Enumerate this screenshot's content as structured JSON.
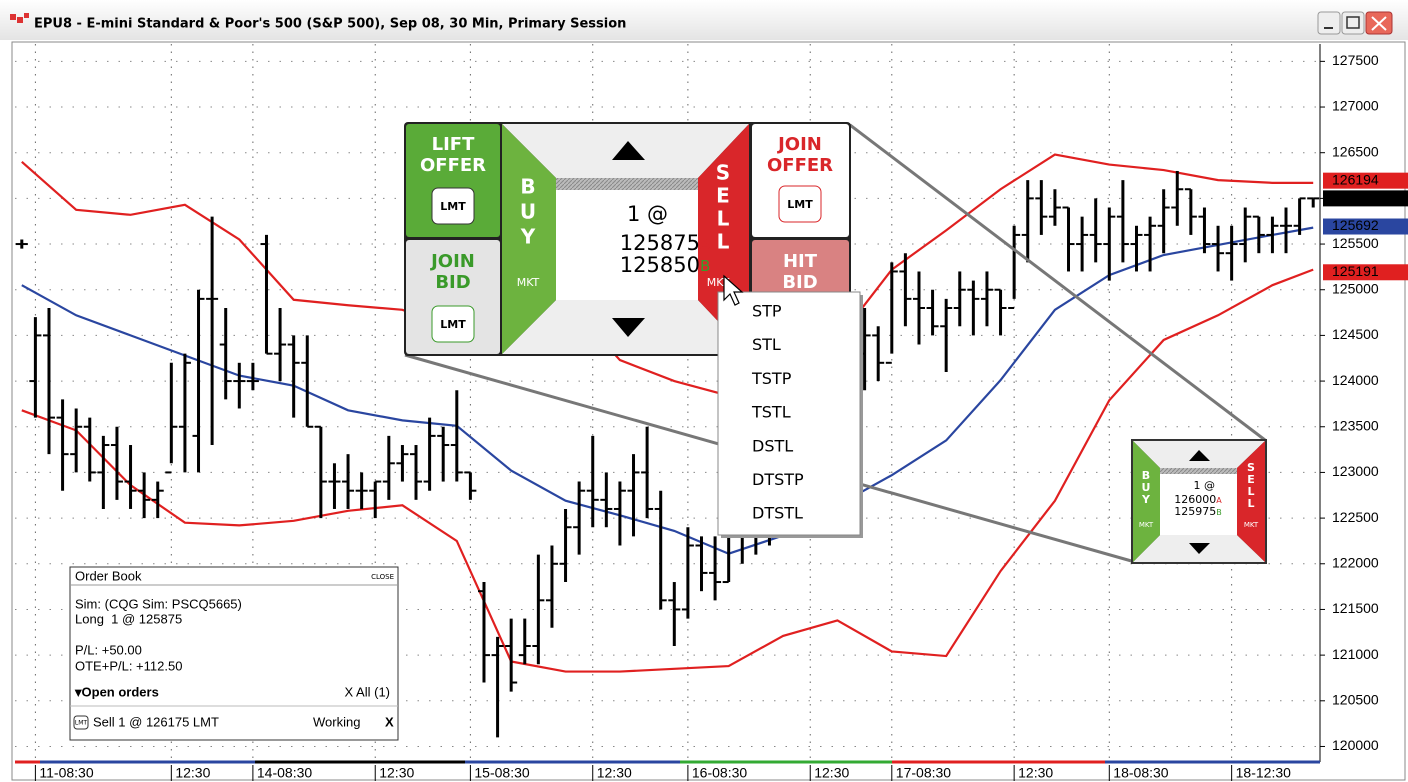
{
  "window": {
    "title": "EPU8 - E-mini Standard & Poor's 500 (S&P 500), Sep 08, 30 Min, Primary Session"
  },
  "chart_data": {
    "type": "ohlc",
    "xlim": [
      -0.5,
      95.5
    ],
    "ylim": [
      119830,
      127690
    ],
    "yticks": [
      120000,
      120500,
      121000,
      121500,
      122000,
      122500,
      123000,
      123500,
      124000,
      124500,
      125000,
      125500,
      126000,
      126500,
      127000,
      127500
    ],
    "xticks": [
      {
        "value": 1,
        "label": "11-08:30"
      },
      {
        "value": 11,
        "label": "12:30"
      },
      {
        "value": 17,
        "label": "14-08:30"
      },
      {
        "value": 26,
        "label": "12:30"
      },
      {
        "value": 33,
        "label": "15-08:30"
      },
      {
        "value": 42,
        "label": "12:30"
      },
      {
        "value": 49,
        "label": "16-08:30"
      },
      {
        "value": 58,
        "label": "12:30"
      },
      {
        "value": 64,
        "label": "17-08:30"
      },
      {
        "value": 73,
        "label": "12:30"
      },
      {
        "value": 80,
        "label": "18-08:30"
      },
      {
        "value": 89,
        "label": "18-12:30"
      }
    ],
    "grid": true,
    "color": "#000000",
    "bars": [
      [
        125500,
        125550,
        125450,
        125500
      ],
      [
        124000,
        124700,
        123600,
        124500
      ],
      [
        124500,
        124800,
        123200,
        123600
      ],
      [
        123600,
        123800,
        122800,
        123200
      ],
      [
        123200,
        123700,
        123000,
        123500
      ],
      [
        123500,
        123600,
        122900,
        123000
      ],
      [
        123000,
        123400,
        122600,
        123300
      ],
      [
        123300,
        123500,
        122700,
        122900
      ],
      [
        122900,
        123300,
        122600,
        122800
      ],
      [
        122800,
        123000,
        122500,
        122700
      ],
      [
        122700,
        122900,
        122500,
        122800
      ],
      [
        123000,
        124200,
        123100,
        123500
      ],
      [
        123500,
        124300,
        123000,
        124200
      ],
      [
        123400,
        125000,
        123000,
        124900
      ],
      [
        124900,
        125800,
        123300,
        124900
      ],
      [
        124400,
        124800,
        123800,
        124000
      ],
      [
        124000,
        124200,
        123700,
        124000
      ],
      [
        124000,
        124200,
        123900,
        124000
      ],
      [
        125500,
        125600,
        124300,
        124300
      ],
      [
        124300,
        124800,
        124000,
        124400
      ],
      [
        124400,
        124500,
        123600,
        124200
      ],
      [
        124200,
        124500,
        123500,
        123500
      ],
      [
        123500,
        123500,
        122500,
        122900
      ],
      [
        122900,
        123100,
        122600,
        122900
      ],
      [
        122900,
        123200,
        122600,
        122800
      ],
      [
        122800,
        123000,
        122600,
        122800
      ],
      [
        122800,
        122900,
        122500,
        122900
      ],
      [
        122900,
        123400,
        122700,
        123100
      ],
      [
        123100,
        123300,
        122900,
        123200
      ],
      [
        123200,
        123300,
        122700,
        122900
      ],
      [
        122900,
        123600,
        122800,
        123400
      ],
      [
        123400,
        123500,
        122900,
        123300
      ],
      [
        123300,
        123900,
        122900,
        123000
      ],
      [
        123000,
        123000,
        122700,
        122800
      ],
      [
        121700,
        121800,
        120700,
        121000
      ],
      [
        121000,
        121200,
        120100,
        121100
      ],
      [
        121100,
        121400,
        120600,
        120700
      ],
      [
        121000,
        121400,
        120900,
        121100
      ],
      [
        121100,
        122100,
        120900,
        121600
      ],
      [
        121600,
        122200,
        121300,
        122000
      ],
      [
        122000,
        122600,
        121800,
        122400
      ],
      [
        122400,
        122900,
        122100,
        122800
      ],
      [
        122800,
        123400,
        122400,
        122700
      ],
      [
        122700,
        123000,
        122400,
        122600
      ],
      [
        122600,
        122900,
        122200,
        122800
      ],
      [
        122800,
        123200,
        122300,
        123000
      ],
      [
        123000,
        123500,
        122500,
        122600
      ],
      [
        122600,
        122800,
        121500,
        121600
      ],
      [
        121600,
        121800,
        121100,
        121500
      ],
      [
        121500,
        122400,
        121400,
        122200
      ],
      [
        122200,
        122300,
        121700,
        121900
      ],
      [
        121900,
        122300,
        121600,
        121800
      ],
      [
        121800,
        122700,
        121800,
        122300
      ],
      [
        122300,
        122500,
        122000,
        122300
      ],
      [
        122300,
        122600,
        122100,
        122400
      ],
      [
        122400,
        122800,
        122200,
        122600
      ],
      [
        122600,
        123000,
        122400,
        122800
      ],
      [
        122800,
        123300,
        122600,
        123100
      ],
      [
        123100,
        123600,
        122900,
        123400
      ],
      [
        123400,
        123900,
        123200,
        123700
      ],
      [
        123700,
        124300,
        123500,
        124000
      ],
      [
        124000,
        124500,
        123700,
        124300
      ],
      [
        124300,
        124800,
        123900,
        124500
      ],
      [
        124500,
        124600,
        124000,
        124200
      ],
      [
        124200,
        125300,
        124300,
        125200
      ],
      [
        125200,
        125400,
        124600,
        124900
      ],
      [
        124900,
        125200,
        124400,
        124800
      ],
      [
        124800,
        125000,
        124500,
        124600
      ],
      [
        124600,
        124900,
        124100,
        124800
      ],
      [
        124800,
        125200,
        124600,
        125000
      ],
      [
        125000,
        125100,
        124500,
        124900
      ],
      [
        124900,
        125200,
        124600,
        125000
      ],
      [
        125000,
        125000,
        124500,
        124800
      ],
      [
        124800,
        125700,
        124900,
        125600
      ],
      [
        125600,
        126200,
        125300,
        126000
      ],
      [
        126000,
        126200,
        125600,
        125800
      ],
      [
        125800,
        126100,
        125700,
        125900
      ],
      [
        125900,
        125900,
        125200,
        125500
      ],
      [
        125500,
        125800,
        125200,
        125600
      ],
      [
        125600,
        126000,
        125300,
        125500
      ],
      [
        125500,
        125900,
        125100,
        125800
      ],
      [
        125800,
        126200,
        125300,
        125500
      ],
      [
        125500,
        125700,
        125200,
        125600
      ],
      [
        125600,
        125800,
        125200,
        125700
      ],
      [
        125700,
        126100,
        125400,
        125900
      ],
      [
        125900,
        126300,
        125700,
        126100
      ],
      [
        126100,
        126100,
        125600,
        125800
      ],
      [
        125800,
        125900,
        125400,
        125500
      ],
      [
        125500,
        125700,
        125200,
        125400
      ],
      [
        125400,
        125700,
        125100,
        125500
      ],
      [
        125500,
        125900,
        125300,
        125800
      ],
      [
        125800,
        125800,
        125400,
        125600
      ],
      [
        125600,
        125800,
        125400,
        125700
      ],
      [
        125700,
        125900,
        125400,
        125700
      ],
      [
        125700,
        126000,
        125600,
        126000
      ],
      [
        126000,
        126000,
        125900,
        126000
      ]
    ],
    "overlay_x": [
      0,
      4,
      8,
      12,
      16,
      20,
      24,
      28,
      32,
      36,
      40,
      44,
      48,
      52,
      56,
      60,
      64,
      68,
      72,
      76,
      80,
      84,
      88,
      92,
      95
    ],
    "overlays": [
      {
        "color": "#e02020",
        "values": [
          126400,
          125875,
          125820,
          125930,
          125550,
          124890,
          124830,
          124780,
          124560,
          124670,
          124890,
          124230,
          124000,
          123840,
          124000,
          124450,
          125220,
          125650,
          126100,
          126480,
          126370,
          126310,
          126200,
          126170,
          126170
        ]
      },
      {
        "color": "#2a46a0",
        "values": [
          125050,
          124720,
          124500,
          124280,
          124060,
          123950,
          123680,
          123570,
          123510,
          123020,
          122690,
          122530,
          122360,
          122110,
          122310,
          122640,
          122970,
          123350,
          124010,
          124780,
          125160,
          125380,
          125490,
          125600,
          125680
        ]
      },
      {
        "color": "#e02020",
        "values": [
          123680,
          123460,
          122860,
          122450,
          122420,
          122470,
          122580,
          122640,
          122250,
          120930,
          120820,
          120820,
          120850,
          120880,
          121210,
          121380,
          121040,
          120990,
          121920,
          122690,
          123790,
          124450,
          124720,
          125050,
          125220
        ]
      }
    ],
    "price_tags": [
      {
        "value": 126194,
        "color": "#e02020"
      },
      {
        "value": 126000,
        "color": "#000000"
      },
      {
        "value": 125692,
        "color": "#2a46a0"
      },
      {
        "value": 125191,
        "color": "#e02020"
      }
    ]
  },
  "trade_pad": {
    "lift_offer": [
      "LIFT",
      "OFFER"
    ],
    "lift_lmt": "LMT",
    "join_bid": [
      "JOIN",
      "BID"
    ],
    "join_bid_lmt": "LMT",
    "buy": [
      "B",
      "U",
      "Y"
    ],
    "buy_mkt": "MKT",
    "qty": "1 @",
    "ask": "125875",
    "ask_tag": "A",
    "bid": "125850",
    "bid_tag": "B",
    "sell": [
      "S",
      "E",
      "L",
      "L"
    ],
    "sell_mkt": "MKT",
    "join_offer": [
      "JOIN",
      "OFFER"
    ],
    "join_offer_lmt": "LMT",
    "hit_bid": [
      "HIT",
      "BID"
    ]
  },
  "order_menu": [
    "STP",
    "STL",
    "TSTP",
    "TSTL",
    "DSTL",
    "DTSTP",
    "DTSTL"
  ],
  "mini_pad": {
    "buy": [
      "B",
      "U",
      "Y"
    ],
    "buy_mkt": "MKT",
    "qty": "1 @",
    "ask": "126000",
    "ask_tag": "A",
    "bid": "125975",
    "bid_tag": "B",
    "sell": [
      "S",
      "E",
      "L",
      "L"
    ],
    "sell_mkt": "MKT"
  },
  "order_book": {
    "title": "Order Book",
    "close": "CLOSE",
    "account": "Sim: (CQG Sim: PSCQ5665)",
    "position": "Long  1 @ 125875",
    "pl": "P/L: +50.00",
    "ote": "OTE+P/L: +112.50",
    "open_orders": "▾Open orders",
    "cancel_all": "X All (1)",
    "order_icon": "LMT",
    "order": "Sell 1 @ 126175 LMT",
    "status": "Working",
    "cancel": "X"
  }
}
